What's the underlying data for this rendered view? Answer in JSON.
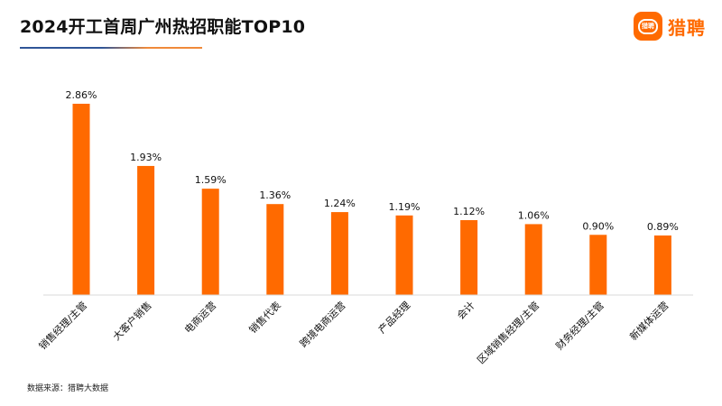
{
  "header": {
    "title": "2024开工首周广州热招职能TOP10",
    "logo_badge_text": "猎聘",
    "logo_text": "猎聘"
  },
  "colors": {
    "bar": "#ff6a00",
    "title_underline": [
      "#2f5597",
      "#f08a3a"
    ],
    "brand": "#ff6a00",
    "axis": "#d9d9d9"
  },
  "chart_data": {
    "type": "bar",
    "title": "2024开工首周广州热招职能TOP10",
    "xlabel": "",
    "ylabel": "",
    "categories": [
      "销售经理/主管",
      "大客户销售",
      "电商运营",
      "销售代表",
      "跨境电商运营",
      "产品经理",
      "会计",
      "区域销售经理/主管",
      "财务经理/主管",
      "新媒体运营"
    ],
    "values": [
      2.86,
      1.93,
      1.59,
      1.36,
      1.24,
      1.19,
      1.12,
      1.06,
      0.9,
      0.89
    ],
    "data_labels": [
      "2.86%",
      "1.93%",
      "1.59%",
      "1.36%",
      "1.24%",
      "1.19%",
      "1.12%",
      "1.06%",
      "0.90%",
      "0.89%"
    ],
    "unit": "%",
    "ylim": [
      0,
      3.0
    ],
    "grid": false,
    "legend": "none"
  },
  "footer": {
    "source": "数据来源：猎聘大数据"
  }
}
